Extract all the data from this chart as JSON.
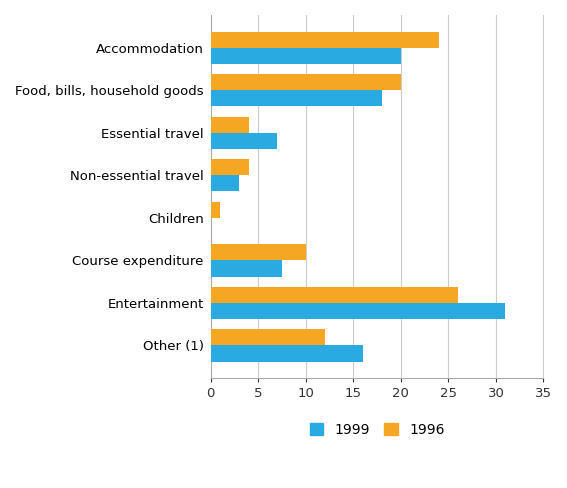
{
  "categories": [
    "Accommodation",
    "Food, bills, household goods",
    "Essential travel",
    "Non-essential travel",
    "Children",
    "Course expenditure",
    "Entertainment",
    "Other (1)"
  ],
  "values_1999": [
    20,
    18,
    7,
    3,
    0,
    7.5,
    31,
    16
  ],
  "values_1996": [
    24,
    20,
    4,
    4,
    1,
    10,
    26,
    12
  ],
  "color_1999": "#29ABE2",
  "color_1996": "#F5A623",
  "xlim": [
    0,
    35
  ],
  "xticks": [
    0,
    5,
    10,
    15,
    20,
    25,
    30,
    35
  ],
  "legend_labels": [
    "1999",
    "1996"
  ],
  "background_color": "#FFFFFF",
  "bar_height": 0.38,
  "label_fontsize": 9.5,
  "tick_fontsize": 9.5,
  "legend_fontsize": 10
}
